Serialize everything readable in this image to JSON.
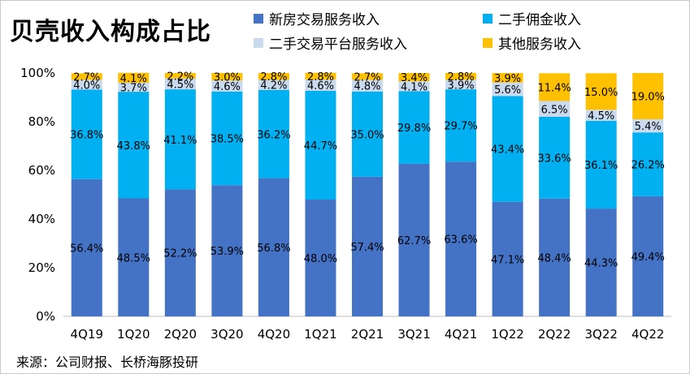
{
  "title": "贝壳收入构成占比",
  "source": "来源：公司财报、长桥海豚投研",
  "legend": [
    {
      "label": "新房交易服务收入",
      "color": "#4472C4",
      "series": 0
    },
    {
      "label": "二手佣金收入",
      "color": "#00B0F0",
      "series": 1
    },
    {
      "label": "二手交易平台服务收入",
      "color": "#C9D9EE",
      "series": 2
    },
    {
      "label": "其他服务收入",
      "color": "#FFC000",
      "series": 3
    }
  ],
  "chart_data": {
    "type": "bar",
    "stacked": true,
    "categories": [
      "4Q19",
      "1Q20",
      "2Q20",
      "3Q20",
      "4Q20",
      "1Q21",
      "2Q21",
      "3Q21",
      "4Q21",
      "1Q22",
      "2Q22",
      "3Q22",
      "4Q22"
    ],
    "series": [
      {
        "name": "新房交易服务收入",
        "color": "#4472C4",
        "values": [
          56.4,
          48.5,
          52.2,
          53.9,
          56.8,
          48.0,
          57.4,
          62.7,
          63.6,
          47.1,
          48.4,
          44.3,
          49.4
        ],
        "labels": [
          "56.4%",
          "48.5%",
          "52.2%",
          "53.9%",
          "56.8%",
          "48.0%",
          "57.4%",
          "62.7%",
          "63.6%",
          "47.1%",
          "48.4%",
          "44.3%",
          "49.4%"
        ]
      },
      {
        "name": "二手佣金收入",
        "color": "#00B0F0",
        "values": [
          36.8,
          43.8,
          41.1,
          38.5,
          36.2,
          44.7,
          35.0,
          29.8,
          29.7,
          43.4,
          33.6,
          36.1,
          26.2
        ],
        "labels": [
          "36.8%",
          "43.8%",
          "41.1%",
          "38.5%",
          "36.2%",
          "44.7%",
          "35.0%",
          "29.8%",
          "29.7%",
          "43.4%",
          "33.6%",
          "36.1%",
          "26.2%"
        ]
      },
      {
        "name": "二手交易平台服务收入",
        "color": "#C9D9EE",
        "values": [
          4.0,
          3.7,
          4.5,
          4.6,
          4.2,
          4.6,
          4.8,
          4.1,
          3.9,
          5.6,
          6.5,
          4.5,
          5.4
        ],
        "labels": [
          "4.0%",
          "3.7%",
          "4.5%",
          "4.6%",
          "4.2%",
          "4.6%",
          "4.8%",
          "4.1%",
          "3.9%",
          "5.6%",
          "6.5%",
          "4.5%",
          "5.4%"
        ]
      },
      {
        "name": "其他服务收入",
        "color": "#FFC000",
        "values": [
          2.7,
          4.1,
          2.2,
          3.0,
          2.8,
          2.8,
          2.7,
          3.4,
          2.8,
          3.9,
          11.4,
          15.0,
          19.0
        ],
        "labels": [
          "2.7%",
          "4.1%",
          "2.2%",
          "3.0%",
          "2.8%",
          "2.8%",
          "2.7%",
          "3.4%",
          "2.8%",
          "3.9%",
          "11.4%",
          "15.0%",
          "19.0%"
        ]
      }
    ],
    "yticks": [
      "0%",
      "20%",
      "40%",
      "60%",
      "80%",
      "100%"
    ],
    "ylim": [
      0,
      100
    ],
    "xlabel": "",
    "ylabel": "",
    "grid": false,
    "legend_position": "top-right"
  }
}
